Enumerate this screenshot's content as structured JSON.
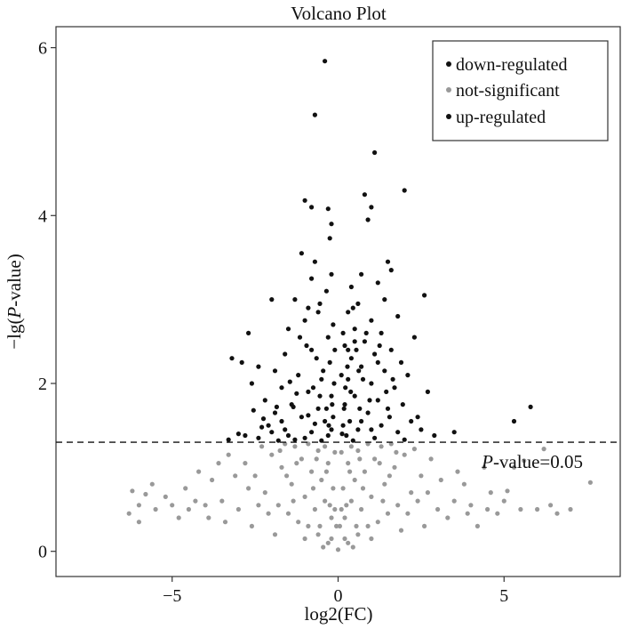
{
  "chart_data": {
    "type": "scatter",
    "title": "Volcano Plot",
    "xlabel": "log2(FC)",
    "ylabel_prefix": "−lg(",
    "ylabel_italic": "P",
    "ylabel_suffix": "-value)",
    "xlim": [
      -8.5,
      8.5
    ],
    "ylim": [
      -0.3,
      6.25
    ],
    "x_ticks": [
      -5,
      0,
      5
    ],
    "x_tick_labels": [
      "−5",
      "0",
      "5"
    ],
    "y_ticks": [
      0,
      2,
      4,
      6
    ],
    "y_tick_labels": [
      "0",
      "2",
      "4",
      "6"
    ],
    "grid": false,
    "legend_position": "top-right",
    "threshold": {
      "y": 1.3,
      "label_italic": "P",
      "label_rest": "-value=0.05"
    },
    "colors": {
      "down": "#111111",
      "notsig": "#999999",
      "up": "#111111"
    },
    "series": [
      {
        "name": "down-regulated",
        "key": "down",
        "points": [
          [
            -0.4,
            5.84
          ],
          [
            -0.7,
            5.2
          ],
          [
            -1.0,
            4.18
          ],
          [
            -0.8,
            4.1
          ],
          [
            -0.3,
            4.08
          ],
          [
            -0.2,
            3.9
          ],
          [
            -0.25,
            3.73
          ],
          [
            -1.1,
            3.55
          ],
          [
            -0.7,
            3.45
          ],
          [
            -0.2,
            3.3
          ],
          [
            -1.3,
            3.0
          ],
          [
            -2.0,
            3.0
          ],
          [
            -0.9,
            2.9
          ],
          [
            -0.6,
            2.85
          ],
          [
            -1.0,
            2.75
          ],
          [
            -1.5,
            2.65
          ],
          [
            -2.7,
            2.6
          ],
          [
            -0.3,
            2.55
          ],
          [
            -0.8,
            2.4
          ],
          [
            -1.6,
            2.35
          ],
          [
            -3.2,
            2.3
          ],
          [
            -2.9,
            2.25
          ],
          [
            -2.4,
            2.2
          ],
          [
            -1.9,
            2.15
          ],
          [
            -1.2,
            2.1
          ],
          [
            -0.5,
            2.05
          ],
          [
            -2.6,
            2.0
          ],
          [
            -1.7,
            1.95
          ],
          [
            -0.9,
            1.9
          ],
          [
            -0.2,
            1.85
          ],
          [
            -2.2,
            1.8
          ],
          [
            -1.4,
            1.75
          ],
          [
            -0.6,
            1.7
          ],
          [
            -1.9,
            1.65
          ],
          [
            -1.1,
            1.6
          ],
          [
            -0.4,
            1.55
          ],
          [
            -2.1,
            1.5
          ],
          [
            -1.6,
            1.45
          ],
          [
            -0.8,
            1.42
          ],
          [
            -0.3,
            1.38
          ],
          [
            -2.4,
            1.35
          ],
          [
            -1.3,
            1.33
          ],
          [
            -0.5,
            1.32
          ],
          [
            -3.0,
            1.4
          ],
          [
            -3.3,
            1.33
          ],
          [
            -2.8,
            1.38
          ],
          [
            -1.8,
            1.32
          ],
          [
            -1.0,
            1.35
          ],
          [
            -0.2,
            1.45
          ],
          [
            -0.15,
            1.6
          ],
          [
            -0.35,
            1.7
          ],
          [
            -0.55,
            1.85
          ],
          [
            -0.75,
            1.95
          ],
          [
            -1.25,
            1.88
          ],
          [
            -1.45,
            2.02
          ],
          [
            -1.85,
            1.72
          ],
          [
            -2.25,
            1.58
          ],
          [
            -2.55,
            1.68
          ],
          [
            -0.45,
            2.15
          ],
          [
            -0.25,
            2.25
          ],
          [
            -0.65,
            2.3
          ],
          [
            -0.95,
            2.45
          ],
          [
            -1.15,
            2.55
          ],
          [
            -0.15,
            2.7
          ],
          [
            -0.35,
            3.1
          ],
          [
            -0.55,
            2.95
          ],
          [
            -0.8,
            3.25
          ],
          [
            -0.1,
            2.4
          ],
          [
            -0.12,
            2.0
          ],
          [
            -0.18,
            1.75
          ],
          [
            -0.28,
            1.5
          ],
          [
            -1.7,
            1.55
          ],
          [
            -2.0,
            1.42
          ],
          [
            -2.3,
            1.48
          ],
          [
            -1.5,
            1.38
          ],
          [
            -0.7,
            1.52
          ],
          [
            -0.9,
            1.62
          ],
          [
            -1.35,
            1.72
          ]
        ]
      },
      {
        "name": "not-significant",
        "key": "notsig",
        "points": [
          [
            0.0,
            0.02
          ],
          [
            -0.3,
            0.1
          ],
          [
            0.3,
            0.1
          ],
          [
            -0.6,
            0.2
          ],
          [
            0.6,
            0.2
          ],
          [
            -0.9,
            0.3
          ],
          [
            0.9,
            0.3
          ],
          [
            -1.2,
            0.35
          ],
          [
            1.2,
            0.35
          ],
          [
            -0.2,
            0.4
          ],
          [
            0.2,
            0.4
          ],
          [
            -1.5,
            0.45
          ],
          [
            1.5,
            0.45
          ],
          [
            -0.7,
            0.5
          ],
          [
            0.7,
            0.5
          ],
          [
            -1.8,
            0.55
          ],
          [
            1.8,
            0.55
          ],
          [
            -0.4,
            0.6
          ],
          [
            0.4,
            0.6
          ],
          [
            -1.0,
            0.65
          ],
          [
            1.0,
            0.65
          ],
          [
            -2.2,
            0.7
          ],
          [
            2.2,
            0.7
          ],
          [
            -0.15,
            0.75
          ],
          [
            0.15,
            0.75
          ],
          [
            -1.4,
            0.8
          ],
          [
            1.4,
            0.8
          ],
          [
            -0.5,
            0.85
          ],
          [
            0.5,
            0.85
          ],
          [
            -2.5,
            0.9
          ],
          [
            2.5,
            0.9
          ],
          [
            -0.8,
            0.95
          ],
          [
            0.8,
            0.95
          ],
          [
            -1.7,
            1.0
          ],
          [
            1.7,
            1.0
          ],
          [
            -0.3,
            1.05
          ],
          [
            0.3,
            1.05
          ],
          [
            -1.1,
            1.1
          ],
          [
            1.1,
            1.1
          ],
          [
            -2.0,
            1.15
          ],
          [
            2.0,
            1.15
          ],
          [
            -0.6,
            1.2
          ],
          [
            0.6,
            1.2
          ],
          [
            -1.3,
            1.25
          ],
          [
            1.3,
            1.25
          ],
          [
            -3.0,
            0.5
          ],
          [
            3.0,
            0.5
          ],
          [
            -3.5,
            0.6
          ],
          [
            3.5,
            0.6
          ],
          [
            -4.0,
            0.55
          ],
          [
            4.0,
            0.55
          ],
          [
            -4.5,
            0.5
          ],
          [
            4.5,
            0.5
          ],
          [
            -5.0,
            0.55
          ],
          [
            5.0,
            0.6
          ],
          [
            -5.5,
            0.5
          ],
          [
            -6.0,
            0.55
          ],
          [
            -6.3,
            0.45
          ],
          [
            -6.2,
            0.72
          ],
          [
            -5.8,
            0.68
          ],
          [
            5.5,
            0.5
          ],
          [
            6.0,
            0.5
          ],
          [
            6.6,
            0.45
          ],
          [
            7.0,
            0.5
          ],
          [
            7.6,
            0.82
          ],
          [
            -3.8,
            0.85
          ],
          [
            3.8,
            0.8
          ],
          [
            -4.2,
            0.95
          ],
          [
            4.4,
            1.0
          ],
          [
            -2.8,
            1.05
          ],
          [
            2.8,
            1.1
          ],
          [
            -3.3,
            1.15
          ],
          [
            5.3,
            1.0
          ],
          [
            5.6,
            1.08
          ],
          [
            6.2,
            1.22
          ],
          [
            -4.8,
            0.4
          ],
          [
            4.8,
            0.45
          ],
          [
            -2.6,
            0.3
          ],
          [
            2.6,
            0.3
          ],
          [
            -3.4,
            0.35
          ],
          [
            3.3,
            0.4
          ],
          [
            -0.05,
            0.3
          ],
          [
            0.05,
            0.3
          ],
          [
            -0.1,
            0.5
          ],
          [
            0.1,
            0.5
          ],
          [
            -0.2,
            0.15
          ],
          [
            0.2,
            0.15
          ],
          [
            -0.45,
            0.05
          ],
          [
            0.45,
            0.05
          ],
          [
            -1.9,
            0.2
          ],
          [
            1.9,
            0.25
          ],
          [
            -2.3,
            1.25
          ],
          [
            2.3,
            1.22
          ],
          [
            -1.6,
            1.28
          ],
          [
            1.6,
            1.28
          ],
          [
            -0.9,
            1.28
          ],
          [
            0.9,
            1.28
          ],
          [
            -3.6,
            1.05
          ],
          [
            3.6,
            0.95
          ],
          [
            -4.6,
            0.75
          ],
          [
            4.6,
            0.7
          ],
          [
            -5.2,
            0.65
          ],
          [
            5.1,
            0.72
          ],
          [
            -2.1,
            0.45
          ],
          [
            2.1,
            0.45
          ],
          [
            -1.0,
            0.15
          ],
          [
            1.0,
            0.15
          ],
          [
            -1.35,
            0.6
          ],
          [
            1.35,
            0.6
          ],
          [
            -2.7,
            0.75
          ],
          [
            2.7,
            0.7
          ],
          [
            -3.1,
            0.9
          ],
          [
            3.1,
            0.85
          ],
          [
            -0.35,
            0.95
          ],
          [
            0.35,
            0.95
          ],
          [
            -0.75,
            0.75
          ],
          [
            0.75,
            0.75
          ],
          [
            -1.55,
            0.9
          ],
          [
            1.55,
            0.9
          ],
          [
            -1.25,
            1.05
          ],
          [
            1.25,
            1.05
          ],
          [
            -0.55,
            0.3
          ],
          [
            0.55,
            0.3
          ],
          [
            -0.25,
            0.55
          ],
          [
            0.25,
            0.55
          ],
          [
            -2.4,
            0.55
          ],
          [
            2.4,
            0.6
          ],
          [
            -3.9,
            0.4
          ],
          [
            3.9,
            0.45
          ],
          [
            -4.3,
            0.6
          ],
          [
            4.2,
            0.3
          ],
          [
            -5.6,
            0.8
          ],
          [
            6.4,
            0.55
          ],
          [
            -6.0,
            0.35
          ],
          [
            -0.65,
            1.1
          ],
          [
            0.65,
            1.1
          ],
          [
            -1.75,
            1.2
          ],
          [
            1.75,
            1.18
          ],
          [
            -0.1,
            1.18
          ],
          [
            0.1,
            1.18
          ],
          [
            -0.4,
            1.25
          ],
          [
            0.4,
            1.25
          ]
        ]
      },
      {
        "name": "up-regulated",
        "key": "up",
        "points": [
          [
            1.1,
            4.75
          ],
          [
            2.0,
            4.3
          ],
          [
            0.8,
            4.25
          ],
          [
            1.0,
            4.1
          ],
          [
            0.9,
            3.95
          ],
          [
            1.5,
            3.45
          ],
          [
            1.6,
            3.35
          ],
          [
            0.7,
            3.3
          ],
          [
            1.2,
            3.2
          ],
          [
            0.4,
            3.15
          ],
          [
            2.6,
            3.05
          ],
          [
            1.4,
            3.0
          ],
          [
            0.6,
            2.95
          ],
          [
            0.3,
            2.85
          ],
          [
            1.8,
            2.8
          ],
          [
            1.0,
            2.75
          ],
          [
            0.5,
            2.65
          ],
          [
            1.3,
            2.6
          ],
          [
            2.3,
            2.55
          ],
          [
            0.8,
            2.5
          ],
          [
            0.2,
            2.45
          ],
          [
            1.6,
            2.4
          ],
          [
            1.1,
            2.35
          ],
          [
            0.4,
            2.3
          ],
          [
            1.9,
            2.25
          ],
          [
            0.7,
            2.2
          ],
          [
            1.4,
            2.15
          ],
          [
            2.1,
            2.1
          ],
          [
            0.3,
            2.05
          ],
          [
            1.0,
            2.0
          ],
          [
            1.7,
            1.95
          ],
          [
            2.7,
            1.9
          ],
          [
            0.5,
            1.85
          ],
          [
            1.2,
            1.8
          ],
          [
            0.2,
            1.75
          ],
          [
            1.5,
            1.7
          ],
          [
            5.8,
            1.72
          ],
          [
            0.9,
            1.65
          ],
          [
            2.4,
            1.6
          ],
          [
            0.35,
            1.55
          ],
          [
            5.3,
            1.55
          ],
          [
            1.3,
            1.5
          ],
          [
            0.6,
            1.45
          ],
          [
            1.8,
            1.42
          ],
          [
            3.5,
            1.42
          ],
          [
            0.25,
            1.38
          ],
          [
            1.1,
            1.35
          ],
          [
            2.0,
            1.33
          ],
          [
            0.45,
            1.32
          ],
          [
            0.15,
            1.5
          ],
          [
            0.18,
            1.7
          ],
          [
            0.22,
            1.95
          ],
          [
            0.28,
            2.2
          ],
          [
            0.55,
            2.4
          ],
          [
            0.75,
            2.05
          ],
          [
            0.95,
            1.8
          ],
          [
            1.45,
            1.9
          ],
          [
            1.65,
            2.05
          ],
          [
            1.95,
            1.75
          ],
          [
            2.2,
            1.55
          ],
          [
            2.5,
            1.45
          ],
          [
            0.12,
            1.4
          ],
          [
            0.65,
            1.7
          ],
          [
            0.85,
            2.6
          ],
          [
            1.25,
            2.45
          ],
          [
            0.45,
            2.9
          ],
          [
            0.15,
            2.6
          ],
          [
            0.1,
            2.1
          ],
          [
            2.9,
            1.38
          ],
          [
            1.55,
            1.6
          ],
          [
            0.7,
            1.55
          ],
          [
            1.0,
            1.45
          ],
          [
            0.38,
            1.9
          ],
          [
            0.62,
            2.15
          ],
          [
            1.2,
            2.25
          ],
          [
            0.3,
            2.4
          ],
          [
            0.5,
            2.5
          ]
        ]
      }
    ]
  }
}
